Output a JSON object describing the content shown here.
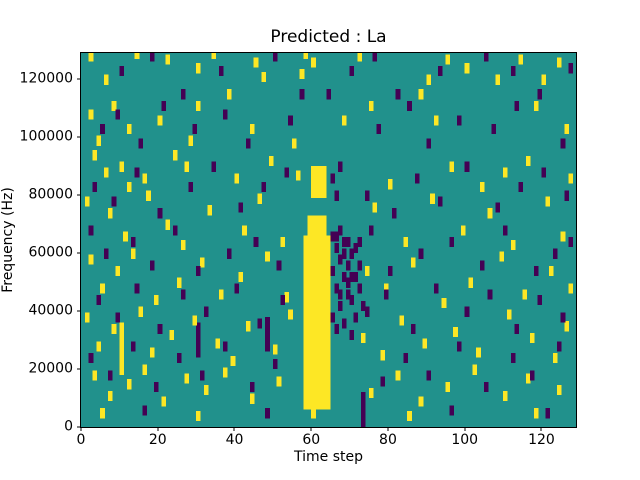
{
  "figure": {
    "background": "#ffffff"
  },
  "chart_data": {
    "type": "heatmap",
    "title": "Predicted : La",
    "xlabel": "Time step",
    "ylabel": "Frequency (Hz)",
    "x_range": [
      0,
      129
    ],
    "y_range_hz": [
      0,
      129000
    ],
    "x_ticks": {
      "values": [
        0,
        20,
        40,
        60,
        80,
        100,
        120
      ],
      "labels": [
        "0",
        "20",
        "40",
        "60",
        "80",
        "100",
        "120"
      ]
    },
    "y_ticks": {
      "values_khz": [
        0,
        20,
        40,
        60,
        80,
        100,
        120
      ],
      "labels": [
        "0",
        "20000",
        "40000",
        "60000",
        "80000",
        "100000",
        "120000"
      ]
    },
    "colors": {
      "background_mid": "#21918c",
      "high": "#fde725",
      "low": "#440154"
    },
    "grid": false,
    "legend": "none",
    "cell": {
      "width_steps": 1.2,
      "height_khz": 3.5
    },
    "yellow_rects_xywh_khz": [
      [
        58,
        6,
        7,
        60
      ],
      [
        59,
        66,
        5,
        7
      ],
      [
        60,
        79,
        4,
        11
      ],
      [
        10,
        18,
        1.2,
        18
      ]
    ],
    "purple_rects_xywh_khz": [
      [
        73,
        0,
        1.2,
        12
      ],
      [
        30,
        24,
        1.2,
        12
      ],
      [
        48,
        26,
        1.2,
        12
      ]
    ],
    "yellow_points_x_ykhz": [
      [
        2,
        126
      ],
      [
        6,
        118
      ],
      [
        14,
        127
      ],
      [
        22,
        125
      ],
      [
        30,
        122
      ],
      [
        34,
        127
      ],
      [
        45,
        124
      ],
      [
        47,
        119
      ],
      [
        57,
        120
      ],
      [
        58,
        127
      ],
      [
        60,
        124
      ],
      [
        72,
        126
      ],
      [
        90,
        118
      ],
      [
        95,
        125
      ],
      [
        100,
        122
      ],
      [
        108,
        118
      ],
      [
        114,
        125
      ],
      [
        120,
        118
      ],
      [
        124,
        124
      ],
      [
        2,
        106
      ],
      [
        4,
        97
      ],
      [
        8,
        109
      ],
      [
        12,
        101
      ],
      [
        20,
        104
      ],
      [
        28,
        97
      ],
      [
        30,
        109
      ],
      [
        38,
        113
      ],
      [
        44,
        101
      ],
      [
        55,
        96
      ],
      [
        68,
        104
      ],
      [
        75,
        109
      ],
      [
        88,
        113
      ],
      [
        92,
        104
      ],
      [
        118,
        109
      ],
      [
        126,
        101
      ],
      [
        3,
        92
      ],
      [
        10,
        88
      ],
      [
        16,
        84
      ],
      [
        24,
        92
      ],
      [
        6,
        86
      ],
      [
        12,
        81
      ],
      [
        27,
        88
      ],
      [
        40,
        84
      ],
      [
        49,
        90
      ],
      [
        56,
        85
      ],
      [
        80,
        82
      ],
      [
        96,
        88
      ],
      [
        104,
        81
      ],
      [
        110,
        86
      ],
      [
        116,
        90
      ],
      [
        127,
        84
      ],
      [
        1,
        76
      ],
      [
        7,
        72
      ],
      [
        11,
        64
      ],
      [
        17,
        78
      ],
      [
        22,
        68
      ],
      [
        26,
        61
      ],
      [
        33,
        73
      ],
      [
        42,
        66
      ],
      [
        46,
        77
      ],
      [
        52,
        62
      ],
      [
        76,
        74
      ],
      [
        84,
        62
      ],
      [
        91,
        77
      ],
      [
        99,
        66
      ],
      [
        106,
        72
      ],
      [
        112,
        61
      ],
      [
        121,
        76
      ],
      [
        125,
        64
      ],
      [
        2,
        56
      ],
      [
        5,
        46
      ],
      [
        9,
        52
      ],
      [
        13,
        58
      ],
      [
        19,
        42
      ],
      [
        25,
        48
      ],
      [
        31,
        55
      ],
      [
        36,
        44
      ],
      [
        41,
        50
      ],
      [
        48,
        57
      ],
      [
        53,
        43
      ],
      [
        74,
        52
      ],
      [
        79,
        46
      ],
      [
        86,
        55
      ],
      [
        94,
        41
      ],
      [
        101,
        48
      ],
      [
        109,
        57
      ],
      [
        115,
        44
      ],
      [
        122,
        52
      ],
      [
        127,
        46
      ],
      [
        1,
        36
      ],
      [
        4,
        26
      ],
      [
        8,
        32
      ],
      [
        15,
        38
      ],
      [
        18,
        24
      ],
      [
        23,
        30
      ],
      [
        29,
        35
      ],
      [
        35,
        27
      ],
      [
        39,
        21
      ],
      [
        43,
        33
      ],
      [
        50,
        25
      ],
      [
        54,
        37
      ],
      [
        73,
        29
      ],
      [
        78,
        23
      ],
      [
        83,
        35
      ],
      [
        89,
        27
      ],
      [
        97,
        31
      ],
      [
        103,
        24
      ],
      [
        111,
        37
      ],
      [
        117,
        29
      ],
      [
        123,
        22
      ],
      [
        126,
        33
      ],
      [
        3,
        16
      ],
      [
        7,
        9
      ],
      [
        12,
        13
      ],
      [
        16,
        18
      ],
      [
        21,
        7
      ],
      [
        27,
        15
      ],
      [
        32,
        11
      ],
      [
        37,
        17
      ],
      [
        44,
        8
      ],
      [
        51,
        14
      ],
      [
        75,
        10
      ],
      [
        82,
        16
      ],
      [
        88,
        7
      ],
      [
        95,
        12
      ],
      [
        102,
        18
      ],
      [
        110,
        9
      ],
      [
        116,
        15
      ],
      [
        124,
        11
      ],
      [
        5,
        3
      ],
      [
        30,
        2
      ],
      [
        60,
        3
      ],
      [
        85,
        2
      ],
      [
        118,
        3
      ]
    ],
    "purple_points_x_ykhz": [
      [
        10,
        121
      ],
      [
        18,
        126
      ],
      [
        26,
        113
      ],
      [
        36,
        121
      ],
      [
        50,
        126
      ],
      [
        57,
        113
      ],
      [
        64,
        113
      ],
      [
        70,
        121
      ],
      [
        76,
        126
      ],
      [
        82,
        113
      ],
      [
        93,
        121
      ],
      [
        105,
        126
      ],
      [
        112,
        121
      ],
      [
        119,
        113
      ],
      [
        127,
        122
      ],
      [
        5,
        101
      ],
      [
        9,
        106
      ],
      [
        15,
        96
      ],
      [
        21,
        109
      ],
      [
        29,
        101
      ],
      [
        37,
        106
      ],
      [
        43,
        96
      ],
      [
        54,
        104
      ],
      [
        77,
        101
      ],
      [
        85,
        109
      ],
      [
        90,
        96
      ],
      [
        98,
        104
      ],
      [
        107,
        101
      ],
      [
        113,
        109
      ],
      [
        125,
        96
      ],
      [
        3,
        81
      ],
      [
        8,
        76
      ],
      [
        14,
        86
      ],
      [
        20,
        72
      ],
      [
        28,
        81
      ],
      [
        34,
        88
      ],
      [
        41,
        74
      ],
      [
        47,
        81
      ],
      [
        53,
        86
      ],
      [
        66,
        78
      ],
      [
        65,
        84
      ],
      [
        67,
        88
      ],
      [
        74,
        78
      ],
      [
        81,
        72
      ],
      [
        87,
        84
      ],
      [
        93,
        76
      ],
      [
        100,
        88
      ],
      [
        108,
        74
      ],
      [
        114,
        81
      ],
      [
        120,
        86
      ],
      [
        126,
        78
      ],
      [
        2,
        66
      ],
      [
        6,
        58
      ],
      [
        13,
        62
      ],
      [
        18,
        54
      ],
      [
        24,
        66
      ],
      [
        30,
        52
      ],
      [
        38,
        58
      ],
      [
        45,
        62
      ],
      [
        51,
        54
      ],
      [
        75,
        66
      ],
      [
        80,
        52
      ],
      [
        88,
        58
      ],
      [
        96,
        62
      ],
      [
        104,
        54
      ],
      [
        110,
        66
      ],
      [
        118,
        52
      ],
      [
        123,
        58
      ],
      [
        127,
        62
      ],
      [
        4,
        42
      ],
      [
        9,
        36
      ],
      [
        14,
        46
      ],
      [
        20,
        32
      ],
      [
        26,
        44
      ],
      [
        32,
        38
      ],
      [
        40,
        46
      ],
      [
        46,
        34
      ],
      [
        52,
        42
      ],
      [
        74,
        38
      ],
      [
        79,
        44
      ],
      [
        86,
        32
      ],
      [
        92,
        46
      ],
      [
        100,
        38
      ],
      [
        106,
        44
      ],
      [
        113,
        32
      ],
      [
        119,
        42
      ],
      [
        125,
        36
      ],
      [
        2,
        22
      ],
      [
        7,
        16
      ],
      [
        13,
        26
      ],
      [
        19,
        12
      ],
      [
        25,
        22
      ],
      [
        31,
        16
      ],
      [
        37,
        26
      ],
      [
        44,
        12
      ],
      [
        50,
        20
      ],
      [
        78,
        14
      ],
      [
        84,
        22
      ],
      [
        90,
        16
      ],
      [
        98,
        26
      ],
      [
        105,
        12
      ],
      [
        112,
        22
      ],
      [
        117,
        16
      ],
      [
        124,
        26
      ],
      [
        16,
        4
      ],
      [
        48,
        3
      ],
      [
        96,
        4
      ],
      [
        121,
        3
      ],
      [
        65,
        64
      ],
      [
        66,
        60
      ],
      [
        67,
        56
      ],
      [
        65,
        52
      ],
      [
        68,
        50
      ],
      [
        66,
        46
      ],
      [
        69,
        44
      ],
      [
        67,
        40
      ],
      [
        65,
        36
      ],
      [
        68,
        34
      ],
      [
        70,
        58
      ],
      [
        71,
        50
      ],
      [
        70,
        42
      ],
      [
        69,
        62
      ],
      [
        71,
        36
      ],
      [
        66,
        32
      ],
      [
        72,
        54
      ],
      [
        72,
        46
      ],
      [
        73,
        40
      ],
      [
        70,
        30
      ],
      [
        67,
        66
      ],
      [
        68,
        62
      ],
      [
        69,
        54
      ],
      [
        71,
        60
      ],
      [
        72,
        62
      ],
      [
        66,
        64
      ],
      [
        68,
        58
      ],
      [
        69,
        48
      ],
      [
        67,
        44
      ],
      [
        70,
        50
      ]
    ]
  }
}
